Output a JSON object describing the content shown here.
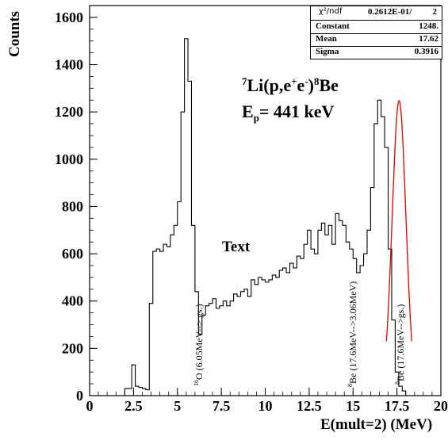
{
  "chart_data": {
    "type": "histogram",
    "xlabel": "E(mult=2) (MeV)",
    "ylabel": "Counts",
    "xlim": [
      0,
      20
    ],
    "ylim": [
      0,
      1650
    ],
    "xticks": [
      {
        "value": 0,
        "label": "0"
      },
      {
        "value": 2.5,
        "label": "2.5"
      },
      {
        "value": 5,
        "label": "5"
      },
      {
        "value": 7.5,
        "label": "7.5"
      },
      {
        "value": 10,
        "label": "10"
      },
      {
        "value": 12.5,
        "label": "12.5"
      },
      {
        "value": 15,
        "label": "15"
      },
      {
        "value": 17.5,
        "label": "17.5"
      },
      {
        "value": 20,
        "label": "20"
      }
    ],
    "yticks": [
      {
        "value": 0,
        "label": "0"
      },
      {
        "value": 200,
        "label": "200"
      },
      {
        "value": 400,
        "label": "400"
      },
      {
        "value": 600,
        "label": "600"
      },
      {
        "value": 800,
        "label": "800"
      },
      {
        "value": 1000,
        "label": "1000"
      },
      {
        "value": 1200,
        "label": "1200"
      },
      {
        "value": 1400,
        "label": "1400"
      },
      {
        "value": 1600,
        "label": "1600"
      }
    ],
    "bin_width": 0.2,
    "bin_start": 2.0,
    "values": [
      30,
      30,
      130,
      40,
      35,
      30,
      25,
      390,
      610,
      620,
      610,
      640,
      630,
      680,
      720,
      820,
      1200,
      1510,
      1330,
      720,
      440,
      260,
      340,
      380,
      390,
      410,
      370,
      380,
      400,
      380,
      400,
      430,
      420,
      440,
      450,
      420,
      490,
      470,
      500,
      490,
      480,
      490,
      510,
      500,
      530,
      540,
      520,
      560,
      540,
      590,
      580,
      640,
      700,
      620,
      600,
      700,
      730,
      680,
      720,
      640,
      770,
      740,
      720,
      650,
      620,
      580,
      520,
      550,
      600,
      700,
      880,
      1150,
      1250,
      1180,
      1050,
      620,
      320,
      100,
      40,
      20
    ],
    "fit": {
      "type": "gaussian",
      "constant": 1248,
      "mean": 17.62,
      "sigma": 0.3916,
      "color": "#e00000"
    },
    "stats": {
      "chi2_label": "χ²/ndf",
      "chi2_value": "0.2612E-01/",
      "ndf": "2",
      "rows": [
        {
          "key": "Constant",
          "value": "1248."
        },
        {
          "key": "Mean",
          "value": "17.62"
        },
        {
          "key": "Sigma",
          "value": "0.3916"
        }
      ]
    },
    "reaction": {
      "pre1": "7",
      "main1": "Li(p,e",
      "sup1": "+",
      "main2": "e",
      "sup2": "-",
      "main3": ")",
      "sup3": "8",
      "main4": "Be"
    },
    "energy": {
      "main": "E",
      "sub": "p",
      "rest": "= 441 keV"
    },
    "annotation_text": "Text",
    "peak_labels": [
      {
        "sup": "16",
        "text": "O (6.05MeV--> gs.)"
      },
      {
        "sup": "8",
        "text": "Be (17.6MeV-->3.06MeV)"
      },
      {
        "sup": "8",
        "text": "Be (17.6MeV-->gs.)"
      }
    ]
  }
}
